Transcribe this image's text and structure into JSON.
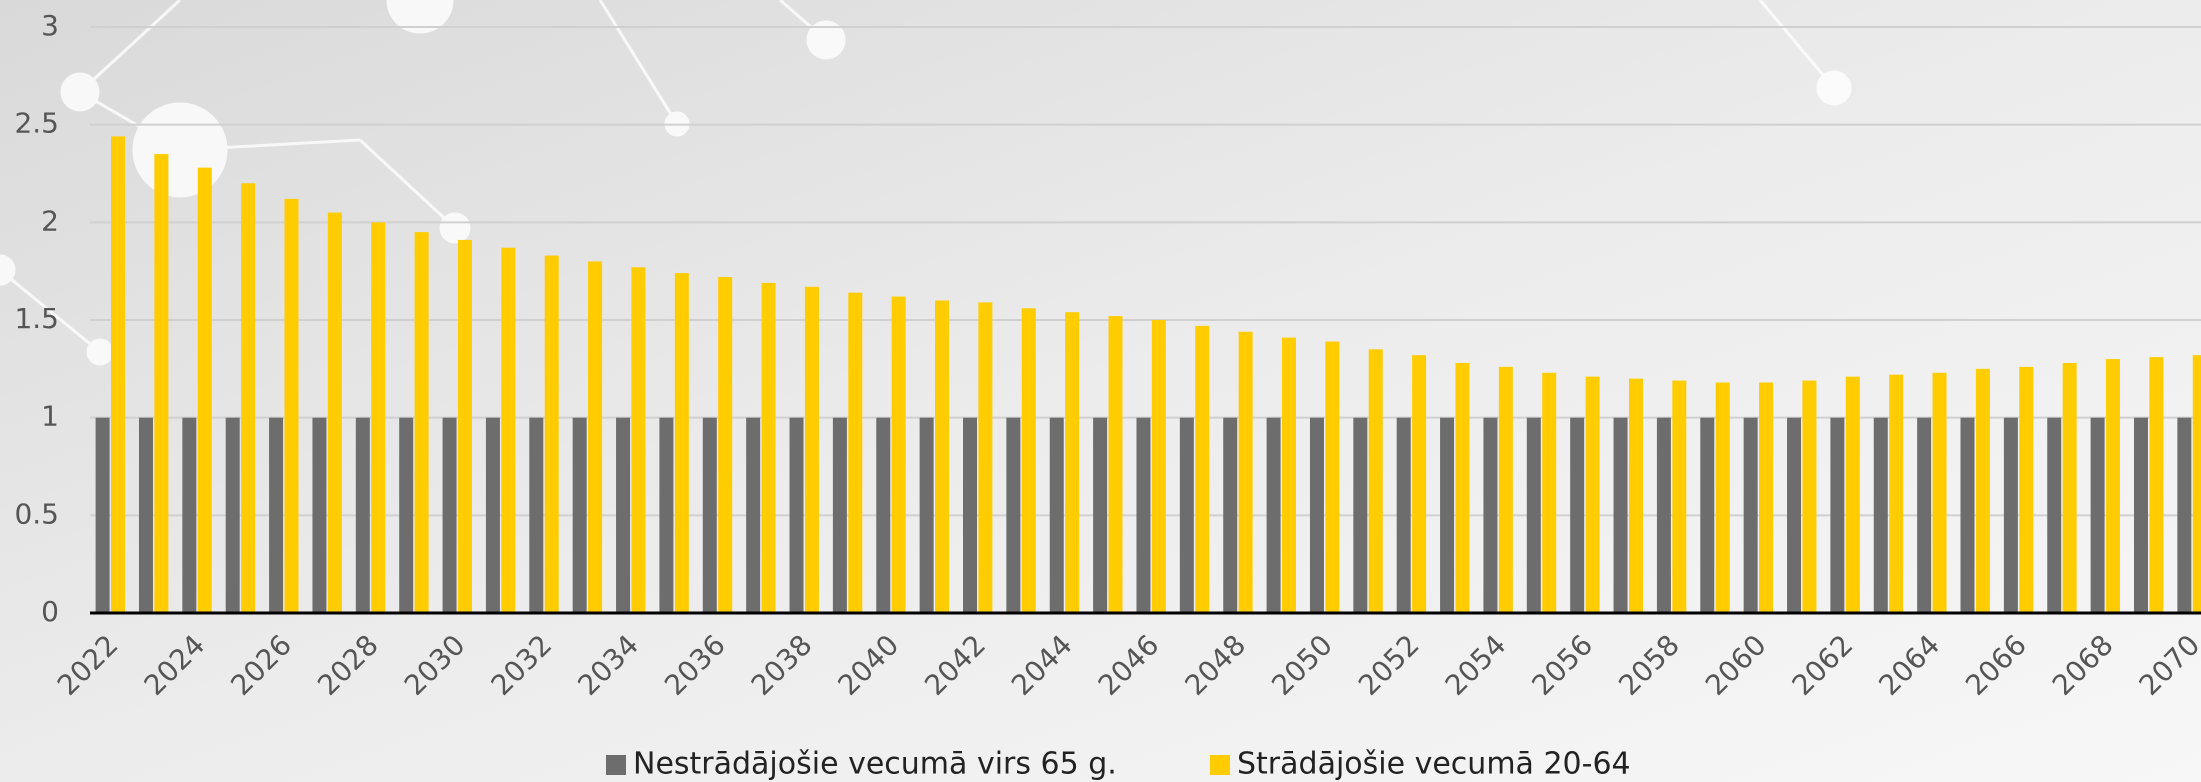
{
  "chart_data": {
    "type": "bar",
    "categories": [
      "2022",
      null,
      "2024",
      null,
      "2026",
      null,
      "2028",
      null,
      "2030",
      null,
      "2032",
      null,
      "2034",
      null,
      "2036",
      null,
      "2038",
      null,
      "2040",
      null,
      "2042",
      null,
      "2044",
      null,
      "2046",
      null,
      "2048",
      null,
      "2050",
      null,
      "2052",
      null,
      "2054",
      null,
      "2056",
      null,
      "2058",
      null,
      "2060",
      null,
      "2062",
      null,
      "2064",
      null,
      "2066",
      null,
      "2068",
      null,
      "2070"
    ],
    "series": [
      {
        "name": "Nestrādājošie vecumā virs 65 g.",
        "color": "#6d6d6d",
        "values": [
          1,
          1,
          1,
          1,
          1,
          1,
          1,
          1,
          1,
          1,
          1,
          1,
          1,
          1,
          1,
          1,
          1,
          1,
          1,
          1,
          1,
          1,
          1,
          1,
          1,
          1,
          1,
          1,
          1,
          1,
          1,
          1,
          1,
          1,
          1,
          1,
          1,
          1,
          1,
          1,
          1,
          1,
          1,
          1,
          1,
          1,
          1,
          1,
          1
        ]
      },
      {
        "name": "Strādājošie vecumā 20-64",
        "color": "#ffcc00",
        "values": [
          2.44,
          2.35,
          2.28,
          2.2,
          2.12,
          2.05,
          2.0,
          1.95,
          1.91,
          1.87,
          1.83,
          1.8,
          1.77,
          1.74,
          1.72,
          1.69,
          1.67,
          1.64,
          1.62,
          1.6,
          1.59,
          1.56,
          1.54,
          1.52,
          1.5,
          1.47,
          1.44,
          1.41,
          1.39,
          1.35,
          1.32,
          1.28,
          1.26,
          1.23,
          1.21,
          1.2,
          1.19,
          1.18,
          1.18,
          1.19,
          1.21,
          1.22,
          1.23,
          1.25,
          1.26,
          1.28,
          1.3,
          1.31,
          1.32
        ]
      }
    ],
    "ylim": [
      0,
      3
    ],
    "yticks": [
      0,
      0.5,
      1,
      1.5,
      2,
      2.5,
      3
    ],
    "grid": true,
    "legend": "bottom"
  }
}
